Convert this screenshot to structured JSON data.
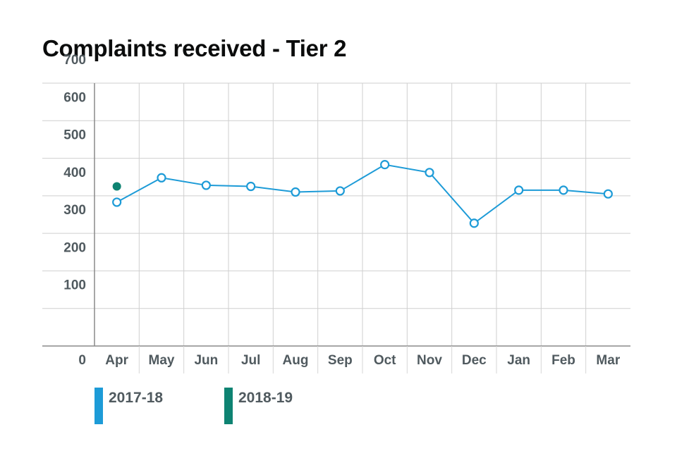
{
  "chart_data": {
    "type": "line",
    "title": "Complaints received - Tier 2",
    "xlabel": "",
    "ylabel": "",
    "categories": [
      "Apr",
      "May",
      "Jun",
      "Jul",
      "Aug",
      "Sep",
      "Oct",
      "Nov",
      "Dec",
      "Jan",
      "Feb",
      "Mar"
    ],
    "y_ticks": [
      "0",
      "100",
      "200",
      "300",
      "400",
      "500",
      "600",
      "700"
    ],
    "ylim": [
      0,
      700
    ],
    "grid": true,
    "legend_position": "bottom-left",
    "series": [
      {
        "name": "2017-18",
        "color": "#1d9bd7",
        "marker": "open-circle",
        "values": [
          383,
          448,
          428,
          425,
          410,
          413,
          483,
          462,
          327,
          415,
          415,
          405
        ]
      },
      {
        "name": "2018-19",
        "color": "#0e8372",
        "marker": "filled-circle",
        "values": [
          425,
          null,
          null,
          null,
          null,
          null,
          null,
          null,
          null,
          null,
          null,
          null
        ]
      }
    ]
  }
}
